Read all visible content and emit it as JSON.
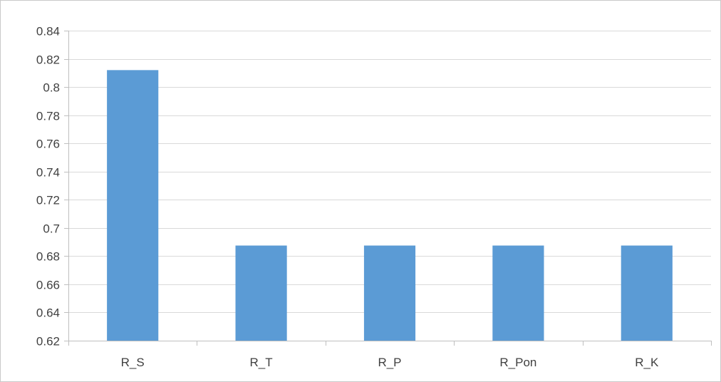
{
  "chart_data": {
    "type": "bar",
    "title": "",
    "xlabel": "",
    "ylabel": "",
    "categories": [
      "R_S",
      "R_T",
      "R_P",
      "R_Pon",
      "R_K"
    ],
    "values": [
      0.812,
      0.6875,
      0.6875,
      0.6875,
      0.6875
    ],
    "ylim": [
      0.62,
      0.84
    ],
    "yticks": [
      "0.62",
      "0.64",
      "0.66",
      "0.68",
      "0.7",
      "0.72",
      "0.74",
      "0.76",
      "0.78",
      "0.8",
      "0.82",
      "0.84"
    ],
    "grid": true,
    "legend": "none"
  },
  "colors": {
    "bar": "#5b9bd5",
    "grid": "#d9d9d9",
    "axis": "#bfbfbf",
    "text": "#404040"
  }
}
